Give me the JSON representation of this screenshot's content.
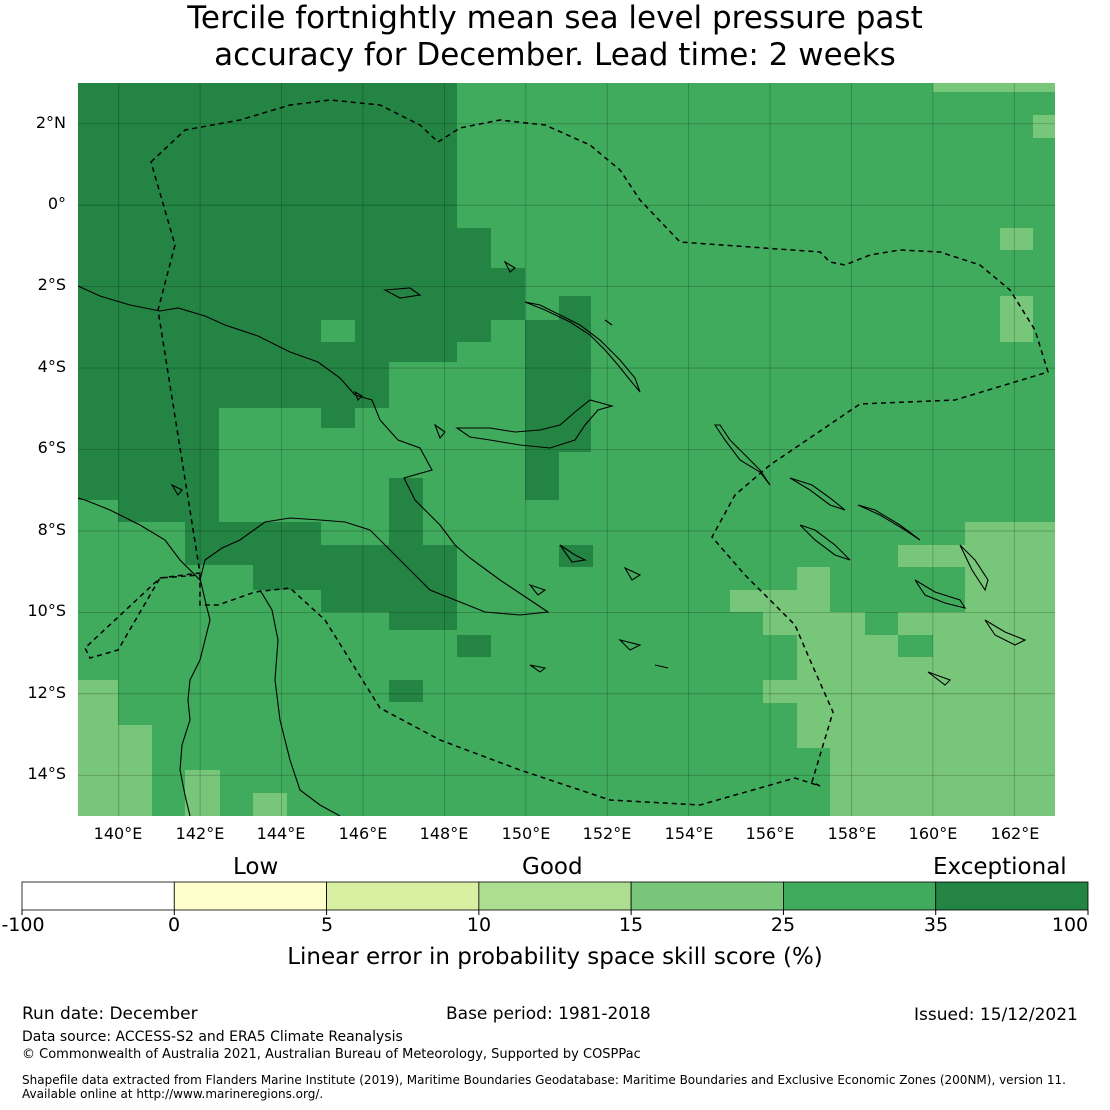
{
  "title": {
    "line1": "Tercile fortnightly mean sea level pressure past",
    "line2": "accuracy for December. Lead time: 2 weeks"
  },
  "map": {
    "lat_labels": [
      "2°N",
      "0°",
      "2°S",
      "4°S",
      "6°S",
      "8°S",
      "10°S",
      "12°S",
      "14°S"
    ],
    "lon_labels": [
      "140°E",
      "142°E",
      "144°E",
      "146°E",
      "148°E",
      "150°E",
      "152°E",
      "154°E",
      "156°E",
      "158°E",
      "160°E",
      "162°E"
    ],
    "lon_range": [
      139,
      163
    ],
    "lat_range": [
      -15,
      3
    ],
    "eez_boundary_icon": "dashed-boundary-line",
    "coastline_icon": "coastline"
  },
  "colorbar": {
    "categories": {
      "low": "Low",
      "good": "Good",
      "exceptional": "Exceptional"
    },
    "ticks": [
      "-100",
      "0",
      "5",
      "10",
      "15",
      "25",
      "35",
      "100"
    ],
    "colors": [
      "#ffffff",
      "#ffffcc",
      "#d9f0a3",
      "#addd8e",
      "#78c679",
      "#41ab5d",
      "#238443"
    ],
    "label": "Linear error in probability space skill score (%)"
  },
  "footer": {
    "run_date": "Run date: December",
    "base_period": "Base period: 1981-2018",
    "issued": "Issued: 15/12/2021",
    "data_source": "Data source: ACCESS-S2 and ERA5 Climate Reanalysis",
    "copyright": "© Commonwealth of Australia 2021, Australian Bureau of Meteorology, Supported by COSPPac",
    "shapefile_line1": "Shapefile data extracted from Flanders Marine Institute (2019), Maritime Boundaries Geodatabase: Maritime Boundaries and Exclusive Economic Zones (200NM), version 11.",
    "shapefile_line2": "Available online at http://www.marineregions.org/."
  }
}
